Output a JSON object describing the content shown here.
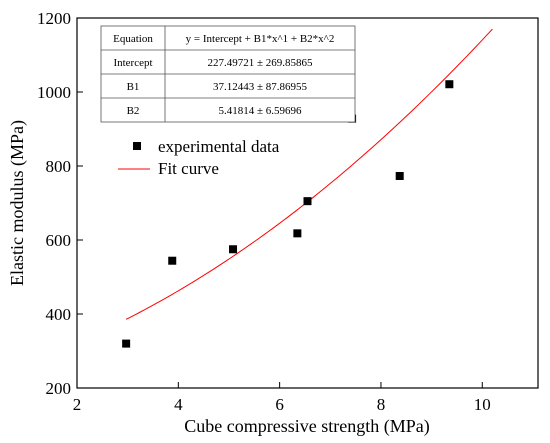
{
  "chart_data": {
    "type": "scatter",
    "xlabel": "Cube compressive strength (MPa)",
    "ylabel": "Elastic modulus (MPa)",
    "xlim": [
      2,
      11.1
    ],
    "ylim": [
      200,
      1200
    ],
    "x_ticks": [
      2,
      4,
      6,
      8,
      10
    ],
    "y_ticks": [
      200,
      400,
      600,
      800,
      1000,
      1200
    ],
    "legend": {
      "placement": "upper-left",
      "entries": [
        "experimental data",
        "Fit curve"
      ]
    },
    "series": [
      {
        "name": "experimental data",
        "kind": "scatter",
        "marker": "square",
        "color": "#000000",
        "points": [
          {
            "x": 2.97,
            "y": 320
          },
          {
            "x": 3.88,
            "y": 544
          },
          {
            "x": 5.08,
            "y": 575
          },
          {
            "x": 6.35,
            "y": 618
          },
          {
            "x": 6.55,
            "y": 705
          },
          {
            "x": 7.43,
            "y": 928
          },
          {
            "x": 8.37,
            "y": 773
          },
          {
            "x": 9.35,
            "y": 1021
          }
        ]
      },
      {
        "name": "Fit curve",
        "kind": "line",
        "color": "#ff0000",
        "model": "quadratic",
        "intercept": 227.49721,
        "b1": 37.12443,
        "b2": 5.41814,
        "x_range": [
          2.97,
          10.2
        ]
      }
    ],
    "fit_table": {
      "rows": [
        {
          "label": "Equation",
          "value": "y = Intercept + B1*x^1 + B2*x^2"
        },
        {
          "label": "Intercept",
          "value": "227.49721 ± 269.85865"
        },
        {
          "label": "B1",
          "value": "37.12443 ± 87.86955"
        },
        {
          "label": "B2",
          "value": "5.41814 ± 6.59696"
        }
      ]
    }
  }
}
